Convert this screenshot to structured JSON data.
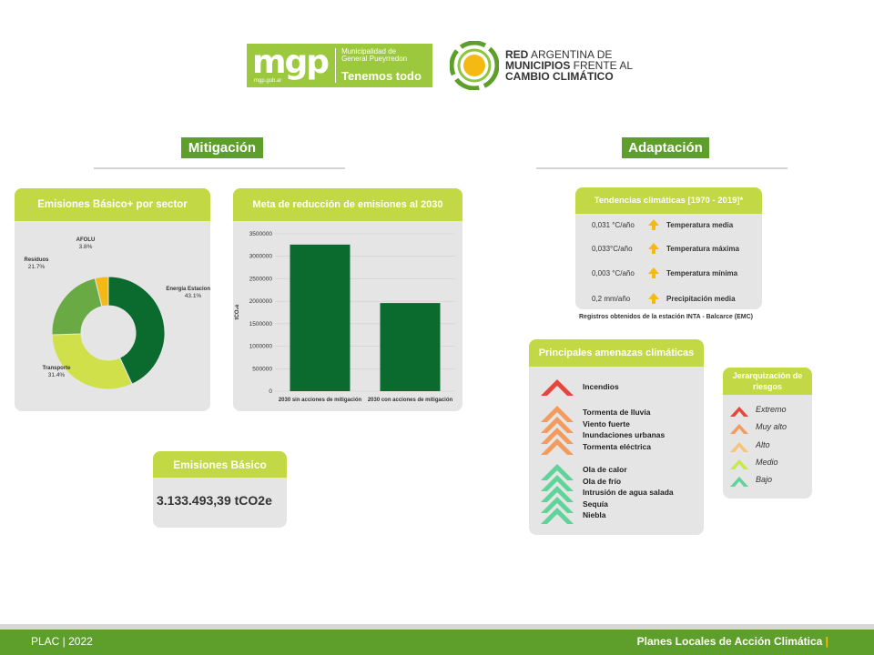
{
  "header": {
    "mgp_word": "mgp",
    "mgp_url": "mgp.gob.ar",
    "mgp_muni_1": "Municipalidad de",
    "mgp_muni_2": "General Pueyrredon",
    "mgp_slogan": "Tenemos todo",
    "ram_line1_bold": "RED",
    "ram_line1_rest": " ARGENTINA DE",
    "ram_line2_bold": "MUNICIPIOS",
    "ram_line2_rest": " FRENTE AL",
    "ram_line3_bold": "CAMBIO CLIMÁTICO"
  },
  "sections": {
    "mitigacion": "Mitigación",
    "adaptacion": "Adaptación"
  },
  "donut": {
    "title": "Emisiones Básico+ por sector",
    "chart_data": {
      "type": "pie",
      "variant": "donut",
      "labels": [
        "Energía Estacionaria",
        "Transporte",
        "Residuos",
        "AFOLU"
      ],
      "values": [
        43.1,
        31.4,
        21.7,
        3.8
      ],
      "value_labels": [
        "43.1%",
        "31.4%",
        "21.7%",
        "3.8%"
      ],
      "colors": [
        "#0b6a2e",
        "#cfe04a",
        "#6aaa44",
        "#f5b914"
      ]
    }
  },
  "bar": {
    "title": "Meta de reducción de emisiones al 2030",
    "chart_data": {
      "type": "bar",
      "categories": [
        "2030 sin acciones de mitigación",
        "2030 con acciones de mitigación"
      ],
      "values": [
        3260000,
        1960000
      ],
      "ylabel": "tCO₂e",
      "ylim": [
        0,
        3500000
      ],
      "yticks": [
        "0",
        "500000",
        "1000000",
        "1500000",
        "2000000",
        "2500000",
        "3000000",
        "3500000"
      ],
      "color": "#0b6a2e"
    }
  },
  "basico": {
    "title": "Emisiones Básico",
    "value": "3.133.493,39 tCO2e"
  },
  "tendencias": {
    "title": "Tendencias climáticas [1970 - 2019]*",
    "rows": [
      {
        "value": "0,031 °C/año",
        "name": "Temperatura media"
      },
      {
        "value": "0,033°C/año",
        "name": "Temperatura máxima"
      },
      {
        "value": "0,003 °C/año",
        "name": "Temperatura mínima"
      },
      {
        "value": "0,2 mm/año",
        "name": "Precipitación media"
      }
    ],
    "note": "Registros obtenidos de la estación INTA - Balcarce (EMC)",
    "icon_color": "#f5b914"
  },
  "amenazas": {
    "title": "Principales amenazas climáticas",
    "group1": [
      "Incendios"
    ],
    "group2": [
      "Tormenta de lluvia",
      "Viento fuerte",
      "Inundaciones urbanas",
      "Tormenta eléctrica"
    ],
    "group3": [
      "Ola de calor",
      "Ola de frío",
      "Intrusión de agua salada",
      "Sequía",
      "Niebla"
    ],
    "colors": {
      "extremo": "#e8453c",
      "muy_alto": "#f39a5e",
      "bajo": "#5fd39a"
    }
  },
  "jerarquia": {
    "title_1": "Jerarquización de",
    "title_2": "riesgos",
    "items": [
      {
        "label": "Extremo",
        "color": "#e8453c"
      },
      {
        "label": "Muy alto",
        "color": "#f39a5e"
      },
      {
        "label": "Alto",
        "color": "#f7c47a"
      },
      {
        "label": "Medio",
        "color": "#c9e84a"
      },
      {
        "label": "Bajo",
        "color": "#5fd39a"
      }
    ]
  },
  "footer": {
    "left": "PLAC | 2022",
    "right": "Planes Locales de Acción Climática",
    "bar": "|"
  }
}
